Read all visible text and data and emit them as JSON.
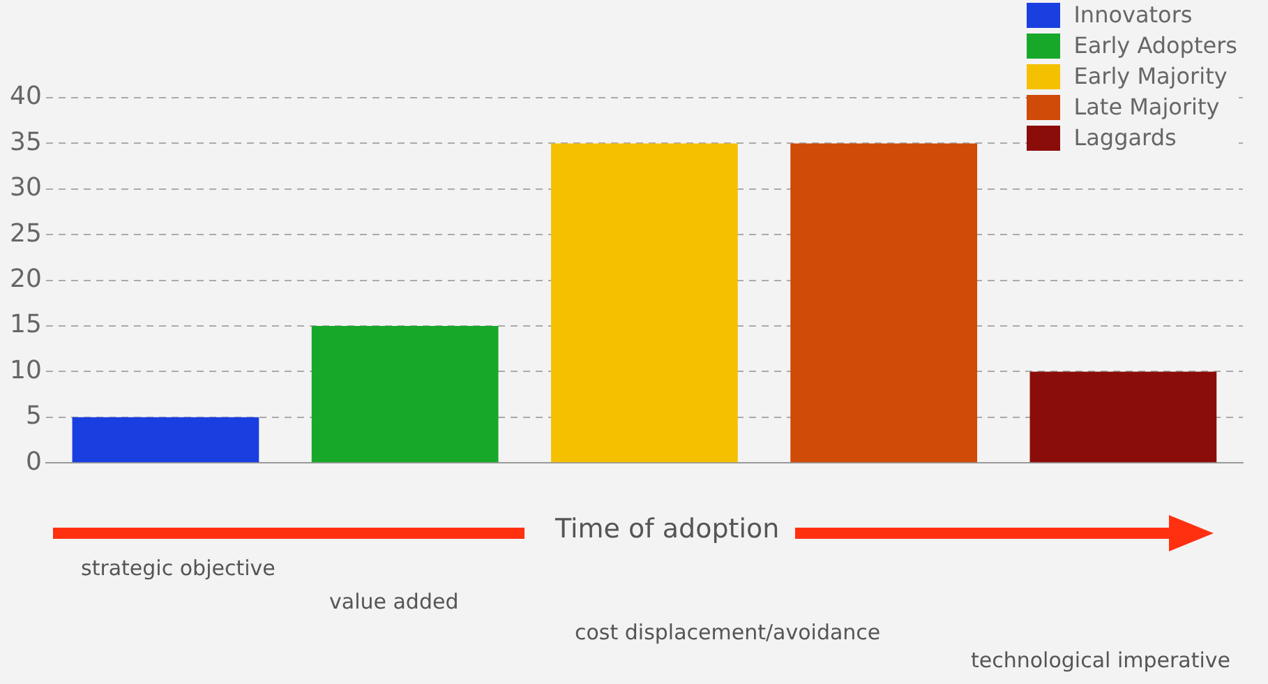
{
  "chart_data": {
    "type": "bar",
    "xlabel": "Time of adoption",
    "categories": [
      null,
      null,
      null,
      null,
      null
    ],
    "series": [
      {
        "name": "Innovators",
        "color": "#1a3fe0",
        "values": [
          5,
          null,
          null,
          null,
          null
        ]
      },
      {
        "name": "Early Adopters",
        "color": "#17a82a",
        "values": [
          null,
          15,
          null,
          null,
          null
        ]
      },
      {
        "name": "Early Majority",
        "color": "#f5c000",
        "values": [
          null,
          null,
          35,
          null,
          null
        ]
      },
      {
        "name": "Late Majority",
        "color": "#d04a08",
        "values": [
          null,
          null,
          null,
          35,
          null
        ]
      },
      {
        "name": "Laggards",
        "color": "#8b0d0a",
        "values": [
          null,
          null,
          null,
          null,
          10
        ]
      }
    ],
    "ylim": [
      0,
      40
    ],
    "yticks": [
      0,
      5,
      10,
      15,
      20,
      25,
      30,
      35,
      40
    ],
    "grid": "y",
    "legend": "top right",
    "annotations": [
      "strategic objective",
      "value added",
      "cost displacement/avoidance",
      "technological imperative"
    ]
  }
}
